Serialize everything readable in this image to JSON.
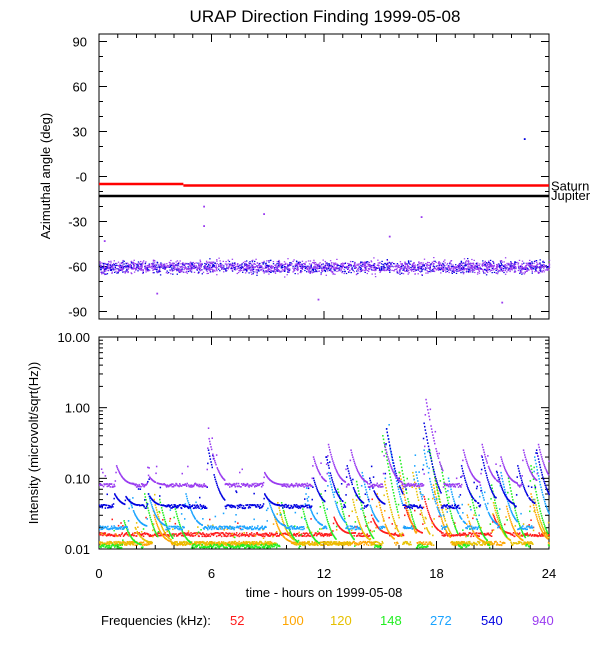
{
  "colors": {
    "f52": "#ff1a1a",
    "f100": "#ffa500",
    "f120": "#e6c000",
    "f148": "#22ee22",
    "f272": "#1aa3ff",
    "f540": "#0000e0",
    "f940": "#9a3cf0",
    "saturn_line": "#ff0000",
    "jupiter_line": "#000000"
  },
  "chart_data": [
    {
      "type": "scatter",
      "title": "URAP Direction Finding  1999-05-08",
      "xlabel": "",
      "ylabel": "Azimuthal angle (deg)",
      "xlim": [
        0,
        24
      ],
      "ylim": [
        -95,
        95
      ],
      "yticks": [
        90,
        60,
        30,
        0,
        -30,
        -60,
        -90
      ],
      "ytick_labels": [
        "90",
        "60",
        "30",
        "-0",
        "-30",
        "-60",
        "-90"
      ],
      "reference_lines": [
        {
          "name": "Saturn",
          "y_start": -5,
          "x_break": 4.5,
          "y_end": -6,
          "color_key": "saturn_line"
        },
        {
          "name": "Jupiter",
          "y": -13,
          "color_key": "jupiter_line"
        }
      ],
      "cluster": {
        "center_deg": -60,
        "spread_deg": 8,
        "description": "scatter band of 940/540 kHz points"
      },
      "outliers": [
        {
          "x": 22.7,
          "y": 25
        },
        {
          "x": 5.6,
          "y": -20
        },
        {
          "x": 5.6,
          "y": -33
        },
        {
          "x": 8.8,
          "y": -25
        },
        {
          "x": 17.2,
          "y": -27
        },
        {
          "x": 3.1,
          "y": -78
        },
        {
          "x": 11.7,
          "y": -82
        },
        {
          "x": 21.5,
          "y": -84
        },
        {
          "x": 0.3,
          "y": -43
        },
        {
          "x": 15.5,
          "y": -40
        }
      ]
    },
    {
      "type": "scatter",
      "title": "",
      "xlabel": "time - hours on 1999-05-08",
      "ylabel": "Intensity (microvolt/sqrt(Hz))",
      "yscale": "log",
      "ylim": [
        0.01,
        10
      ],
      "yticks": [
        10,
        1,
        0.1,
        0.01
      ],
      "ytick_labels": [
        "10.00",
        "1.00",
        "0.10",
        "0.01"
      ],
      "xlim": [
        0,
        24
      ],
      "xticks": [
        0,
        6,
        12,
        18,
        24
      ],
      "xtick_labels": [
        "0",
        "6",
        "12",
        "18",
        "24"
      ],
      "series": [
        {
          "name": "52",
          "color_key": "f52",
          "baseline": 0.016,
          "bursts": [
            [
              12.5,
              0.028
            ],
            [
              14.5,
              0.03
            ],
            [
              16.3,
              0.04
            ],
            [
              17.3,
              0.055
            ],
            [
              21.0,
              0.03
            ]
          ]
        },
        {
          "name": "100",
          "color_key": "f100",
          "baseline": 0.012,
          "bursts": [
            [
              2.9,
              0.03
            ],
            [
              9.3,
              0.03
            ],
            [
              14.8,
              0.06
            ],
            [
              16.0,
              0.12
            ],
            [
              17.8,
              0.08
            ],
            [
              19.6,
              0.03
            ],
            [
              21.7,
              0.04
            ],
            [
              23.0,
              0.06
            ]
          ]
        },
        {
          "name": "120",
          "color_key": "f120",
          "baseline": 0.012,
          "bursts": [
            [
              1.9,
              0.02
            ],
            [
              2.9,
              0.05
            ],
            [
              9.5,
              0.045
            ],
            [
              13.5,
              0.05
            ],
            [
              15.2,
              0.09
            ],
            [
              16.7,
              0.12
            ],
            [
              17.9,
              0.1
            ],
            [
              21.0,
              0.045
            ],
            [
              23.2,
              0.05
            ]
          ]
        },
        {
          "name": "148",
          "color_key": "f148",
          "baseline": 0.011,
          "bursts": [
            [
              1.3,
              0.025
            ],
            [
              2.4,
              0.06
            ],
            [
              3.2,
              0.05
            ],
            [
              4.0,
              0.04
            ],
            [
              9.7,
              0.045
            ],
            [
              10.8,
              0.04
            ],
            [
              11.8,
              0.06
            ],
            [
              12.7,
              0.07
            ],
            [
              13.7,
              0.09
            ],
            [
              15.1,
              0.4
            ],
            [
              16.0,
              0.2
            ],
            [
              17.6,
              0.25
            ],
            [
              18.2,
              0.15
            ],
            [
              19.8,
              0.06
            ],
            [
              20.9,
              0.08
            ],
            [
              21.8,
              0.1
            ],
            [
              23.0,
              0.15
            ]
          ]
        },
        {
          "name": "272",
          "color_key": "f272",
          "baseline": 0.02,
          "bursts": [
            [
              1.6,
              0.05
            ],
            [
              2.6,
              0.06
            ],
            [
              4.6,
              0.06
            ],
            [
              9.0,
              0.05
            ],
            [
              11.0,
              0.06
            ],
            [
              12.2,
              0.12
            ],
            [
              14.0,
              0.12
            ],
            [
              15.3,
              0.5
            ],
            [
              16.8,
              0.15
            ],
            [
              17.3,
              0.25
            ],
            [
              18.6,
              0.1
            ],
            [
              20.3,
              0.08
            ],
            [
              21.4,
              0.12
            ],
            [
              23.2,
              0.2
            ]
          ]
        },
        {
          "name": "540",
          "color_key": "f540",
          "baseline": 0.04,
          "bursts": [
            [
              0.8,
              0.06
            ],
            [
              1.4,
              0.055
            ],
            [
              2.6,
              0.06
            ],
            [
              5.8,
              0.25
            ],
            [
              8.8,
              0.06
            ],
            [
              11.4,
              0.1
            ],
            [
              12.1,
              0.2
            ],
            [
              13.2,
              0.15
            ],
            [
              14.4,
              0.1
            ],
            [
              15.3,
              0.5
            ],
            [
              17.3,
              0.6
            ],
            [
              19.3,
              0.15
            ],
            [
              20.4,
              0.2
            ],
            [
              21.2,
              0.12
            ],
            [
              22.3,
              0.15
            ],
            [
              23.3,
              0.25
            ]
          ]
        },
        {
          "name": "940",
          "color_key": "f940",
          "baseline": 0.08,
          "bursts": [
            [
              0.9,
              0.15
            ],
            [
              2.6,
              0.11
            ],
            [
              5.8,
              0.4
            ],
            [
              8.8,
              0.12
            ],
            [
              11.4,
              0.2
            ],
            [
              12.2,
              0.3
            ],
            [
              13.4,
              0.25
            ],
            [
              15.2,
              0.3
            ],
            [
              17.4,
              1.3
            ],
            [
              19.4,
              0.25
            ],
            [
              20.4,
              0.3
            ],
            [
              21.4,
              0.2
            ],
            [
              22.6,
              0.25
            ],
            [
              23.4,
              0.3
            ]
          ]
        }
      ]
    }
  ],
  "legend": {
    "label": "Frequencies (kHz):",
    "items": [
      {
        "text": "52",
        "color_key": "f52"
      },
      {
        "text": "100",
        "color_key": "f100"
      },
      {
        "text": "120",
        "color_key": "f120"
      },
      {
        "text": "148",
        "color_key": "f148"
      },
      {
        "text": "272",
        "color_key": "f272"
      },
      {
        "text": "540",
        "color_key": "f540"
      },
      {
        "text": "940",
        "color_key": "f940"
      }
    ]
  }
}
